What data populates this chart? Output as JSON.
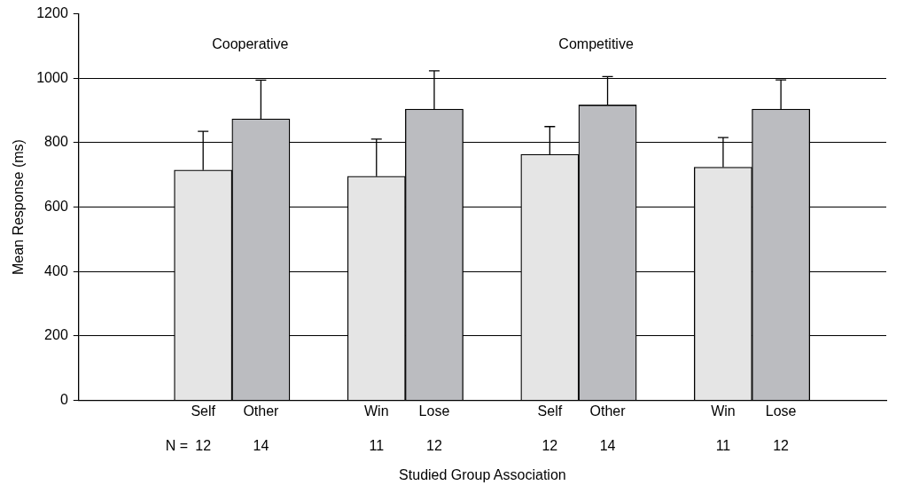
{
  "chart_data": {
    "type": "bar",
    "xlabel": "Studied Group Association",
    "ylabel": "Mean Response (ms)",
    "categories": [
      "Self",
      "Other",
      "Win",
      "Lose",
      "Self",
      "Other",
      "Win",
      "Lose"
    ],
    "values": [
      715,
      874,
      696,
      904,
      764,
      917,
      724,
      904
    ],
    "colors": [
      "#e5e5e5",
      "#bbbcc0",
      "#e5e5e5",
      "#bbbcc0",
      "#e5e5e5",
      "#bbbcc0",
      "#e5e5e5",
      "#bbbcc0"
    ],
    "errors": [
      [
        715,
        835
      ],
      [
        874,
        994
      ],
      [
        696,
        811
      ],
      [
        904,
        1023
      ],
      [
        764,
        850
      ],
      [
        917,
        1005
      ],
      [
        724,
        816
      ],
      [
        904,
        995
      ]
    ],
    "ylim": [
      0,
      1200
    ],
    "yticks": [
      0,
      200,
      400,
      600,
      800,
      1000,
      1200
    ],
    "grid": "y",
    "legend": false,
    "annotations": [
      "Cooperative",
      "Competitive",
      "N =",
      "12",
      "14",
      "11",
      "12",
      "12",
      "14",
      "11",
      "12"
    ]
  }
}
